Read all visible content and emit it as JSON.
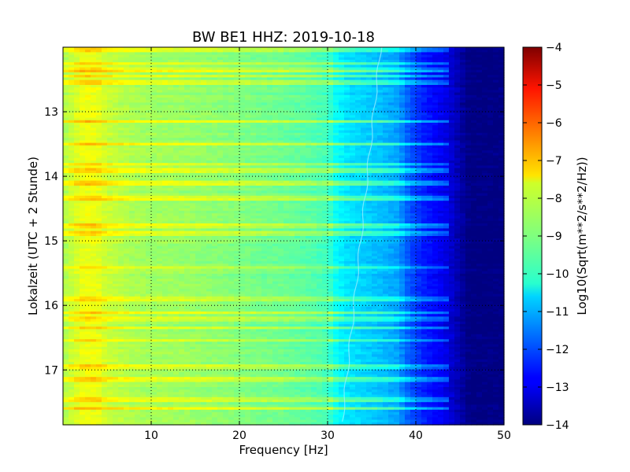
{
  "chart_data": {
    "type": "heatmap",
    "title": "BW BE1 HHZ: 2019-10-18",
    "xlabel": "Frequency [Hz]",
    "ylabel": "Lokalzeit (UTC + 2 Stunde)",
    "xlim": [
      0,
      50
    ],
    "ylim": [
      17.85,
      12.0
    ],
    "y_inverted": true,
    "x_ticks": [
      10,
      20,
      30,
      40,
      50
    ],
    "x_tick_labels": [
      "10",
      "20",
      "30",
      "40",
      "50"
    ],
    "y_ticks": [
      13,
      14,
      15,
      16,
      17
    ],
    "y_tick_labels": [
      "13",
      "14",
      "15",
      "16",
      "17"
    ],
    "grid": true,
    "colormap": "jet",
    "colorbar": {
      "label": "Log10(Sqrt(m**2/s**2/Hz))",
      "range": [
        -14,
        -4
      ],
      "ticks": [
        -4,
        -5,
        -6,
        -7,
        -8,
        -9,
        -10,
        -11,
        -12,
        -13,
        -14
      ],
      "tick_labels": [
        "−4",
        "−5",
        "−6",
        "−7",
        "−8",
        "−9",
        "−10",
        "−11",
        "−12",
        "−13",
        "−14"
      ]
    },
    "spectrum_profile": {
      "frequency_hz": [
        0,
        1,
        2,
        3,
        4,
        5,
        6,
        8,
        10,
        12,
        15,
        18,
        20,
        22,
        25,
        28,
        30,
        31,
        32,
        34,
        36,
        38,
        39,
        40,
        41,
        42,
        43,
        44,
        45,
        46,
        50
      ],
      "level": [
        -8.6,
        -8.3,
        -8.0,
        -7.9,
        -8.0,
        -8.3,
        -8.4,
        -8.6,
        -8.7,
        -8.7,
        -8.8,
        -8.9,
        -9.0,
        -9.1,
        -9.2,
        -9.4,
        -9.6,
        -10.2,
        -10.5,
        -10.7,
        -10.9,
        -11.2,
        -11.8,
        -12.2,
        -12.5,
        -12.7,
        -12.9,
        -13.2,
        -13.6,
        -14.0,
        -14.0
      ]
    },
    "noise_bursts_hours": [
      12.05,
      12.25,
      12.35,
      12.45,
      12.55,
      13.15,
      13.5,
      13.82,
      13.92,
      14.1,
      14.35,
      14.78,
      14.88,
      15.42,
      15.88,
      15.92,
      16.12,
      16.22,
      16.35,
      16.55,
      16.95,
      17.15,
      17.45,
      17.6
    ]
  }
}
